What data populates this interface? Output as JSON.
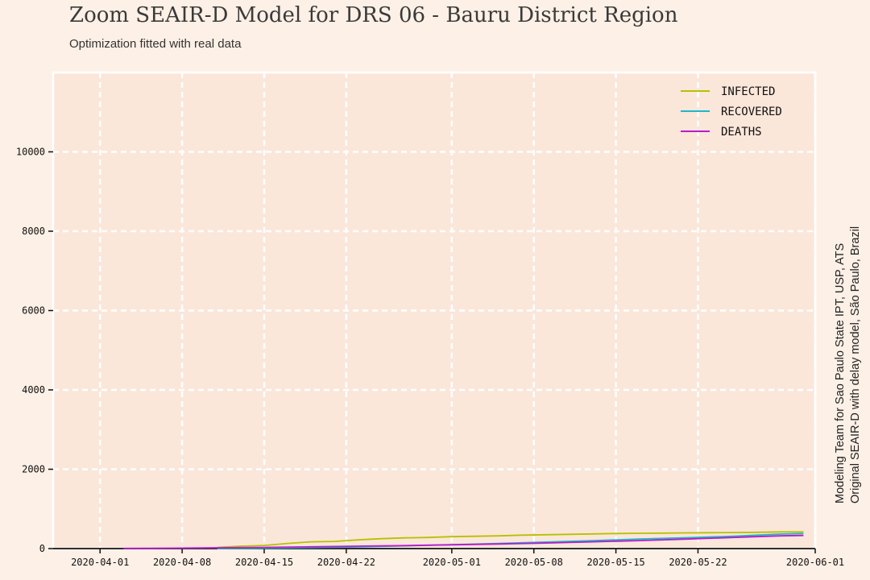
{
  "chart_data": {
    "type": "line",
    "title": "Zoom SEAIR-D Model for DRS 06 - Bauru District Region",
    "subtitle": "Optimization fitted with real data",
    "xlabel": "",
    "ylabel": "",
    "side_note": [
      "Modeling Team for Sao Paulo State IPT, USP, ATS",
      "Original SEAIR-D with delay model, São Paulo, Brazil"
    ],
    "xlim": [
      "2020-03-28",
      "2020-06-01"
    ],
    "ylim": [
      0,
      12000
    ],
    "x_ticks": [
      "2020-04-01",
      "2020-04-08",
      "2020-04-15",
      "2020-04-22",
      "2020-05-01",
      "2020-05-08",
      "2020-05-15",
      "2020-05-22",
      "2020-06-01"
    ],
    "y_ticks": [
      0,
      2000,
      4000,
      6000,
      8000,
      10000
    ],
    "grid": true,
    "legend_position": "top-right",
    "series": [
      {
        "name": "INFECTED",
        "color": "#b5c200",
        "x": [
          "2020-04-11",
          "2020-04-13",
          "2020-04-15",
          "2020-04-17",
          "2020-04-19",
          "2020-04-21",
          "2020-04-23",
          "2020-04-25",
          "2020-04-27",
          "2020-04-29",
          "2020-05-01",
          "2020-05-03",
          "2020-05-05",
          "2020-05-07",
          "2020-05-09",
          "2020-05-11",
          "2020-05-13",
          "2020-05-15",
          "2020-05-17",
          "2020-05-19",
          "2020-05-21",
          "2020-05-23",
          "2020-05-25",
          "2020-05-27",
          "2020-05-29",
          "2020-05-31"
        ],
        "y": [
          30,
          60,
          80,
          130,
          170,
          180,
          220,
          250,
          270,
          280,
          300,
          310,
          320,
          340,
          350,
          360,
          370,
          380,
          385,
          390,
          395,
          400,
          405,
          410,
          420,
          420
        ]
      },
      {
        "name": "RECOVERED",
        "color": "#1fb7c9",
        "x": [
          "2020-04-11",
          "2020-04-15",
          "2020-04-19",
          "2020-04-23",
          "2020-04-27",
          "2020-05-01",
          "2020-05-05",
          "2020-05-09",
          "2020-05-13",
          "2020-05-17",
          "2020-05-21",
          "2020-05-25",
          "2020-05-27",
          "2020-05-29",
          "2020-05-31"
        ],
        "y": [
          0,
          10,
          25,
          45,
          70,
          100,
          130,
          165,
          200,
          240,
          275,
          310,
          340,
          365,
          380
        ]
      },
      {
        "name": "DEATHS",
        "color": "#b81cc9",
        "x": [
          "2020-04-03",
          "2020-04-07",
          "2020-04-11",
          "2020-04-15",
          "2020-04-19",
          "2020-04-23",
          "2020-04-27",
          "2020-05-01",
          "2020-05-05",
          "2020-05-09",
          "2020-05-13",
          "2020-05-17",
          "2020-05-21",
          "2020-05-25",
          "2020-05-29",
          "2020-05-31"
        ],
        "y": [
          5,
          10,
          20,
          30,
          45,
          60,
          75,
          95,
          115,
          140,
          170,
          200,
          240,
          280,
          320,
          330
        ]
      }
    ]
  }
}
